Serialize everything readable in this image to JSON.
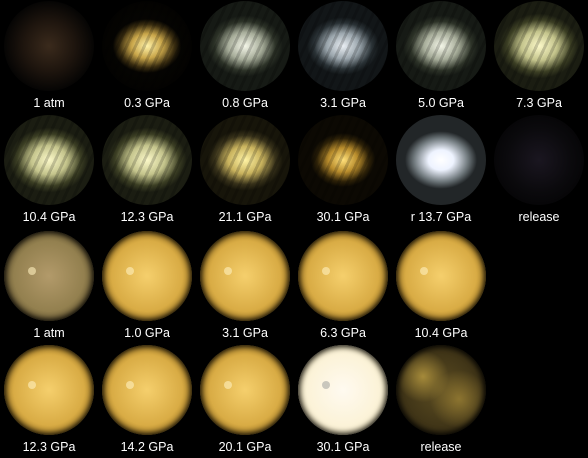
{
  "rows": [
    {
      "kind": "single-crystal",
      "cells": [
        {
          "label": "1 atm",
          "tone": "faint-brown",
          "stripes": false
        },
        {
          "label": "0.3 GPa",
          "tone": "yellow-glow",
          "stripes": true
        },
        {
          "label": "0.8 GPa",
          "tone": "pale-white",
          "stripes": true
        },
        {
          "label": "3.1 GPa",
          "tone": "cool-white",
          "stripes": true
        },
        {
          "label": "5.0 GPa",
          "tone": "pale-white",
          "stripes": true
        },
        {
          "label": "7.3 GPa",
          "tone": "pale-yellow",
          "stripes": true
        }
      ]
    },
    {
      "kind": "single-crystal",
      "cells": [
        {
          "label": "10.4 GPa",
          "tone": "pale-yellow",
          "stripes": true
        },
        {
          "label": "12.3 GPa",
          "tone": "pale-yellow",
          "stripes": true
        },
        {
          "label": "21.1 GPa",
          "tone": "warm-yellow",
          "stripes": true
        },
        {
          "label": "30.1 GPa",
          "tone": "amber",
          "stripes": true
        },
        {
          "label": "r 13.7 GPa",
          "tone": "bright-white",
          "stripes": false
        },
        {
          "label": "release",
          "tone": "dark",
          "stripes": false
        }
      ]
    },
    {
      "kind": "powder",
      "cells": [
        {
          "label": "1 atm",
          "tone": "dull-tan",
          "stripes": false
        },
        {
          "label": "1.0 GPa",
          "tone": "gold",
          "stripes": false
        },
        {
          "label": "3.1 GPa",
          "tone": "gold",
          "stripes": false
        },
        {
          "label": "6.3 GPa",
          "tone": "gold",
          "stripes": false
        },
        {
          "label": "10.4 GPa",
          "tone": "gold",
          "stripes": false
        }
      ]
    },
    {
      "kind": "powder",
      "cells": [
        {
          "label": "12.3 GPa",
          "tone": "gold",
          "stripes": false
        },
        {
          "label": "14.2 GPa",
          "tone": "gold",
          "stripes": false
        },
        {
          "label": "20.1 GPa",
          "tone": "gold",
          "stripes": false
        },
        {
          "label": "30.1 GPa",
          "tone": "cream-white",
          "stripes": false
        },
        {
          "label": "release",
          "tone": "mottled-olive",
          "stripes": false
        }
      ]
    }
  ],
  "colors": {
    "background": "#000000",
    "label_text": "#ffffff"
  }
}
